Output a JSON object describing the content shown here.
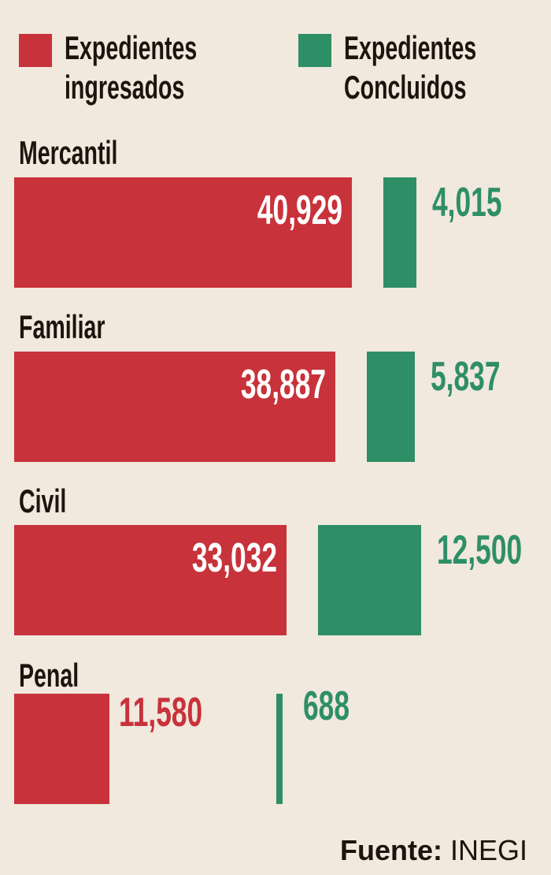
{
  "colors": {
    "ingresados": "#c8323a",
    "concluidos": "#2e8f66",
    "background": "#f1e8de"
  },
  "chart_data": {
    "type": "bar",
    "orientation": "horizontal",
    "categories": [
      "Mercantil",
      "Familiar",
      "Civil",
      "Penal"
    ],
    "series": [
      {
        "name": "Expedientes ingresados",
        "legend_lines": [
          "Expedientes",
          "ingresados"
        ],
        "values": [
          40929,
          38887,
          33032,
          11580
        ],
        "labels": [
          "40,929",
          "38,887",
          "33,032",
          "11,580"
        ]
      },
      {
        "name": "Expedientes Concluidos",
        "legend_lines": [
          "Expedientes",
          "Concluidos"
        ],
        "values": [
          4015,
          5837,
          12500,
          688
        ],
        "labels": [
          "4,015",
          "5,837",
          "12,500",
          "688"
        ]
      }
    ],
    "legend": "top",
    "grid": false
  },
  "source": {
    "label": "Fuente:",
    "value": "INEGI"
  }
}
